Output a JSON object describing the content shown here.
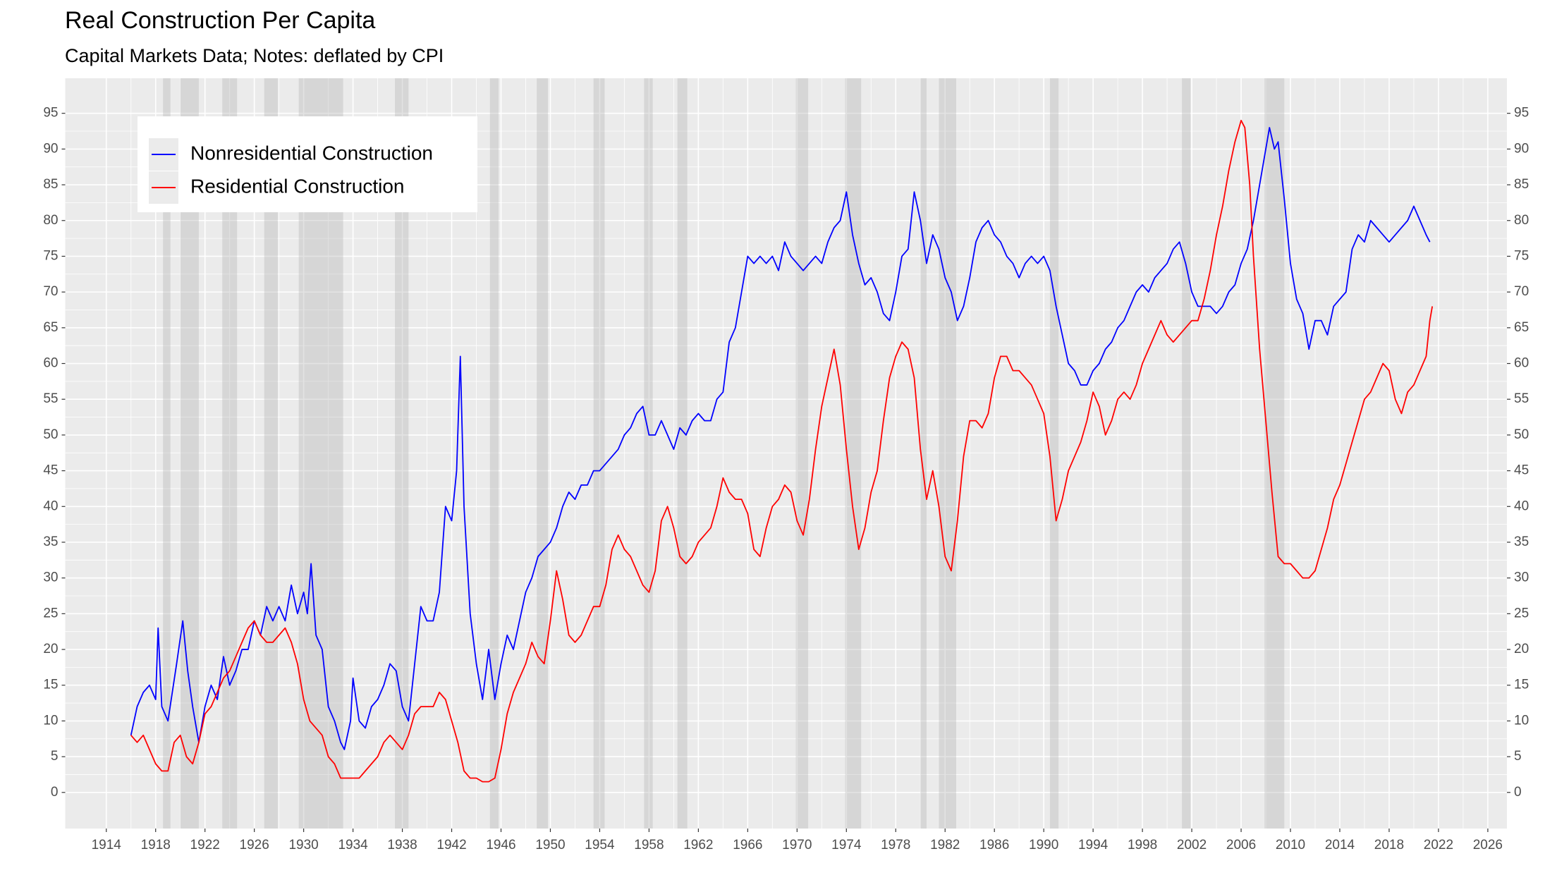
{
  "chart_data": {
    "type": "line",
    "title": "Real Construction Per Capita",
    "subtitle": "Capital Markets Data; Notes: deflated by CPI",
    "xlim": [
      1910.67,
      2027.55
    ],
    "ylim": [
      -5.05,
      99.9
    ],
    "xticks": [
      1914,
      1918,
      1922,
      1926,
      1930,
      1934,
      1938,
      1942,
      1946,
      1950,
      1954,
      1958,
      1962,
      1966,
      1970,
      1974,
      1978,
      1982,
      1986,
      1990,
      1994,
      1998,
      2002,
      2006,
      2010,
      2014,
      2018,
      2022,
      2026
    ],
    "yticks": [
      0,
      5,
      10,
      15,
      20,
      25,
      30,
      35,
      40,
      45,
      50,
      55,
      60,
      65,
      70,
      75,
      80,
      85,
      90,
      95
    ],
    "y2lim": [
      -5.05,
      99.9
    ],
    "y2ticks": [
      0,
      5,
      10,
      15,
      20,
      25,
      30,
      35,
      40,
      45,
      50,
      55,
      60,
      65,
      70,
      75,
      80,
      85,
      90,
      95
    ],
    "grid": true,
    "legend": "top-left",
    "recessions": [
      [
        1918.6,
        1919.2
      ],
      [
        1920.0,
        1921.5
      ],
      [
        1923.4,
        1924.6
      ],
      [
        1926.8,
        1927.9
      ],
      [
        1929.6,
        1933.2
      ],
      [
        1937.4,
        1938.5
      ],
      [
        1945.1,
        1945.8
      ],
      [
        1948.9,
        1949.8
      ],
      [
        1953.5,
        1954.4
      ],
      [
        1957.6,
        1958.3
      ],
      [
        1960.3,
        1961.1
      ],
      [
        1969.9,
        1970.9
      ],
      [
        1973.9,
        1975.2
      ],
      [
        1980.0,
        1980.5
      ],
      [
        1981.5,
        1982.9
      ],
      [
        1990.5,
        1991.2
      ],
      [
        2001.2,
        2001.9
      ],
      [
        2007.9,
        2009.5
      ]
    ],
    "series": [
      {
        "name": "Nonresidential Construction",
        "color": "#0000ff",
        "x": [
          1916.0,
          1916.5,
          1917.0,
          1917.5,
          1918.0,
          1918.2,
          1918.5,
          1919.0,
          1919.7,
          1920.2,
          1920.6,
          1921.0,
          1921.5,
          1922.0,
          1922.5,
          1923.0,
          1923.5,
          1924.0,
          1924.5,
          1925.0,
          1925.5,
          1926.0,
          1926.5,
          1927.0,
          1927.5,
          1928.0,
          1928.5,
          1929.0,
          1929.5,
          1930.0,
          1930.3,
          1930.6,
          1931.0,
          1931.5,
          1932.0,
          1932.5,
          1933.0,
          1933.3,
          1933.8,
          1934.0,
          1934.5,
          1935.0,
          1935.5,
          1936.0,
          1936.5,
          1937.0,
          1937.5,
          1938.0,
          1938.5,
          1939.0,
          1939.5,
          1940.0,
          1940.5,
          1941.0,
          1941.5,
          1942.0,
          1942.4,
          1942.7,
          1943.0,
          1943.5,
          1944.0,
          1944.5,
          1945.0,
          1945.5,
          1946.0,
          1946.5,
          1947.0,
          1947.5,
          1948.0,
          1948.5,
          1949.0,
          1949.5,
          1950.0,
          1950.5,
          1951.0,
          1951.5,
          1952.0,
          1952.5,
          1953.0,
          1953.5,
          1954.0,
          1954.5,
          1955.0,
          1955.5,
          1956.0,
          1956.5,
          1957.0,
          1957.5,
          1958.0,
          1958.5,
          1959.0,
          1959.5,
          1960.0,
          1960.5,
          1961.0,
          1961.5,
          1962.0,
          1962.5,
          1963.0,
          1963.5,
          1964.0,
          1964.5,
          1965.0,
          1965.5,
          1966.0,
          1966.5,
          1967.0,
          1967.5,
          1968.0,
          1968.5,
          1969.0,
          1969.5,
          1970.0,
          1970.5,
          1971.0,
          1971.5,
          1972.0,
          1972.5,
          1973.0,
          1973.5,
          1974.0,
          1974.5,
          1975.0,
          1975.5,
          1976.0,
          1976.5,
          1977.0,
          1977.5,
          1978.0,
          1978.5,
          1979.0,
          1979.5,
          1980.0,
          1980.5,
          1981.0,
          1981.5,
          1982.0,
          1982.5,
          1983.0,
          1983.5,
          1984.0,
          1984.5,
          1985.0,
          1985.5,
          1986.0,
          1986.5,
          1987.0,
          1987.5,
          1988.0,
          1988.5,
          1989.0,
          1989.5,
          1990.0,
          1990.5,
          1991.0,
          1991.5,
          1992.0,
          1992.5,
          1993.0,
          1993.5,
          1994.0,
          1994.5,
          1995.0,
          1995.5,
          1996.0,
          1996.5,
          1997.0,
          1997.5,
          1998.0,
          1998.5,
          1999.0,
          1999.5,
          2000.0,
          2000.5,
          2001.0,
          2001.5,
          2002.0,
          2002.5,
          2003.0,
          2003.5,
          2004.0,
          2004.5,
          2005.0,
          2005.5,
          2006.0,
          2006.5,
          2007.0,
          2007.5,
          2008.0,
          2008.3,
          2008.7,
          2009.0,
          2009.5,
          2010.0,
          2010.5,
          2011.0,
          2011.5,
          2012.0,
          2012.5,
          2013.0,
          2013.5,
          2014.0,
          2014.5,
          2015.0,
          2015.5,
          2016.0,
          2016.5,
          2017.0,
          2017.5,
          2018.0,
          2018.5,
          2019.0,
          2019.5,
          2020.0,
          2020.5,
          2021.0,
          2021.3
        ],
        "values": [
          8,
          12,
          14,
          15,
          13,
          23,
          12,
          10,
          18,
          24,
          17,
          12,
          7,
          12,
          15,
          13,
          19,
          15,
          17,
          20,
          20,
          24,
          22,
          26,
          24,
          26,
          24,
          29,
          25,
          28,
          25,
          32,
          22,
          20,
          12,
          10,
          7,
          6,
          10,
          16,
          10,
          9,
          12,
          13,
          15,
          18,
          17,
          12,
          10,
          18,
          26,
          24,
          24,
          28,
          40,
          38,
          45,
          61,
          40,
          25,
          18,
          13,
          20,
          13,
          18,
          22,
          20,
          24,
          28,
          30,
          33,
          34,
          35,
          37,
          40,
          42,
          41,
          43,
          43,
          45,
          45,
          46,
          47,
          48,
          50,
          51,
          53,
          54,
          50,
          50,
          52,
          50,
          48,
          51,
          50,
          52,
          53,
          52,
          52,
          55,
          56,
          63,
          65,
          70,
          75,
          74,
          75,
          74,
          75,
          73,
          77,
          75,
          74,
          73,
          74,
          75,
          74,
          77,
          79,
          80,
          84,
          78,
          74,
          71,
          72,
          70,
          67,
          66,
          70,
          75,
          76,
          84,
          80,
          74,
          78,
          76,
          72,
          70,
          66,
          68,
          72,
          77,
          79,
          80,
          78,
          77,
          75,
          74,
          72,
          74,
          75,
          74,
          75,
          73,
          68,
          64,
          60,
          59,
          57,
          57,
          59,
          60,
          62,
          63,
          65,
          66,
          68,
          70,
          71,
          70,
          72,
          73,
          74,
          76,
          77,
          74,
          70,
          68,
          68,
          68,
          67,
          68,
          70,
          71,
          74,
          76,
          80,
          85,
          90,
          93,
          90,
          91,
          83,
          74,
          69,
          67,
          62,
          66,
          66,
          64,
          68,
          69,
          70,
          76,
          78,
          77,
          80,
          79,
          78,
          77,
          78,
          79,
          80,
          82,
          80,
          78,
          77
        ]
      },
      {
        "name": "Residential Construction",
        "color": "#ff0000",
        "x": [
          1916.0,
          1916.5,
          1917.0,
          1917.5,
          1918.0,
          1918.5,
          1919.0,
          1919.5,
          1920.0,
          1920.5,
          1921.0,
          1921.5,
          1922.0,
          1922.5,
          1923.0,
          1923.5,
          1924.0,
          1924.5,
          1925.0,
          1925.5,
          1926.0,
          1926.5,
          1927.0,
          1927.5,
          1928.0,
          1928.5,
          1929.0,
          1929.5,
          1930.0,
          1930.5,
          1931.0,
          1931.5,
          1932.0,
          1932.5,
          1933.0,
          1933.5,
          1934.0,
          1934.5,
          1935.0,
          1935.5,
          1936.0,
          1936.5,
          1937.0,
          1937.5,
          1938.0,
          1938.5,
          1939.0,
          1939.5,
          1940.0,
          1940.5,
          1941.0,
          1941.5,
          1942.0,
          1942.5,
          1943.0,
          1943.5,
          1944.0,
          1944.5,
          1945.0,
          1945.5,
          1946.0,
          1946.5,
          1947.0,
          1947.5,
          1948.0,
          1948.5,
          1949.0,
          1949.5,
          1950.0,
          1950.5,
          1951.0,
          1951.5,
          1952.0,
          1952.5,
          1953.0,
          1953.5,
          1954.0,
          1954.5,
          1955.0,
          1955.5,
          1956.0,
          1956.5,
          1957.0,
          1957.5,
          1958.0,
          1958.5,
          1959.0,
          1959.5,
          1960.0,
          1960.5,
          1961.0,
          1961.5,
          1962.0,
          1962.5,
          1963.0,
          1963.5,
          1964.0,
          1964.5,
          1965.0,
          1965.5,
          1966.0,
          1966.5,
          1967.0,
          1967.5,
          1968.0,
          1968.5,
          1969.0,
          1969.5,
          1970.0,
          1970.5,
          1971.0,
          1971.5,
          1972.0,
          1972.5,
          1973.0,
          1973.5,
          1974.0,
          1974.5,
          1975.0,
          1975.5,
          1976.0,
          1976.5,
          1977.0,
          1977.5,
          1978.0,
          1978.5,
          1979.0,
          1979.5,
          1980.0,
          1980.5,
          1981.0,
          1981.5,
          1982.0,
          1982.5,
          1983.0,
          1983.5,
          1984.0,
          1984.5,
          1985.0,
          1985.5,
          1986.0,
          1986.5,
          1987.0,
          1987.5,
          1988.0,
          1988.5,
          1989.0,
          1989.5,
          1990.0,
          1990.5,
          1991.0,
          1991.5,
          1992.0,
          1992.5,
          1993.0,
          1993.5,
          1994.0,
          1994.5,
          1995.0,
          1995.5,
          1996.0,
          1996.5,
          1997.0,
          1997.5,
          1998.0,
          1998.5,
          1999.0,
          1999.5,
          2000.0,
          2000.5,
          2001.0,
          2001.5,
          2002.0,
          2002.5,
          2003.0,
          2003.5,
          2004.0,
          2004.5,
          2005.0,
          2005.5,
          2006.0,
          2006.3,
          2006.7,
          2007.0,
          2007.5,
          2008.0,
          2008.5,
          2009.0,
          2009.5,
          2010.0,
          2010.5,
          2011.0,
          2011.5,
          2012.0,
          2012.5,
          2013.0,
          2013.5,
          2014.0,
          2014.5,
          2015.0,
          2015.5,
          2016.0,
          2016.5,
          2017.0,
          2017.5,
          2018.0,
          2018.5,
          2019.0,
          2019.5,
          2020.0,
          2020.5,
          2021.0,
          2021.3,
          2021.5
        ],
        "values": [
          8,
          7,
          8,
          6,
          4,
          3,
          3,
          7,
          8,
          5,
          4,
          7,
          11,
          12,
          14,
          16,
          17,
          19,
          21,
          23,
          24,
          22,
          21,
          21,
          22,
          23,
          21,
          18,
          13,
          10,
          9,
          8,
          5,
          4,
          2,
          2,
          2,
          2,
          3,
          4,
          5,
          7,
          8,
          7,
          6,
          8,
          11,
          12,
          12,
          12,
          14,
          13,
          10,
          7,
          3,
          2,
          2,
          1.5,
          1.5,
          2,
          6,
          11,
          14,
          16,
          18,
          21,
          19,
          18,
          24,
          31,
          27,
          22,
          21,
          22,
          24,
          26,
          26,
          29,
          34,
          36,
          34,
          33,
          31,
          29,
          28,
          31,
          38,
          40,
          37,
          33,
          32,
          33,
          35,
          36,
          37,
          40,
          44,
          42,
          41,
          41,
          39,
          34,
          33,
          37,
          40,
          41,
          43,
          42,
          38,
          36,
          41,
          48,
          54,
          58,
          62,
          57,
          48,
          40,
          34,
          37,
          42,
          45,
          52,
          58,
          61,
          63,
          62,
          58,
          48,
          41,
          45,
          40,
          33,
          31,
          38,
          47,
          52,
          52,
          51,
          53,
          58,
          61,
          61,
          59,
          59,
          58,
          57,
          55,
          53,
          47,
          38,
          41,
          45,
          47,
          49,
          52,
          56,
          54,
          50,
          52,
          55,
          56,
          55,
          57,
          60,
          62,
          64,
          66,
          64,
          63,
          64,
          65,
          66,
          66,
          69,
          73,
          78,
          82,
          87,
          91,
          94,
          93,
          85,
          75,
          62,
          52,
          42,
          33,
          32,
          32,
          31,
          30,
          30,
          31,
          34,
          37,
          41,
          43,
          46,
          49,
          52,
          55,
          56,
          58,
          60,
          59,
          55,
          53,
          56,
          57,
          59,
          61,
          66,
          68
        ]
      }
    ]
  }
}
